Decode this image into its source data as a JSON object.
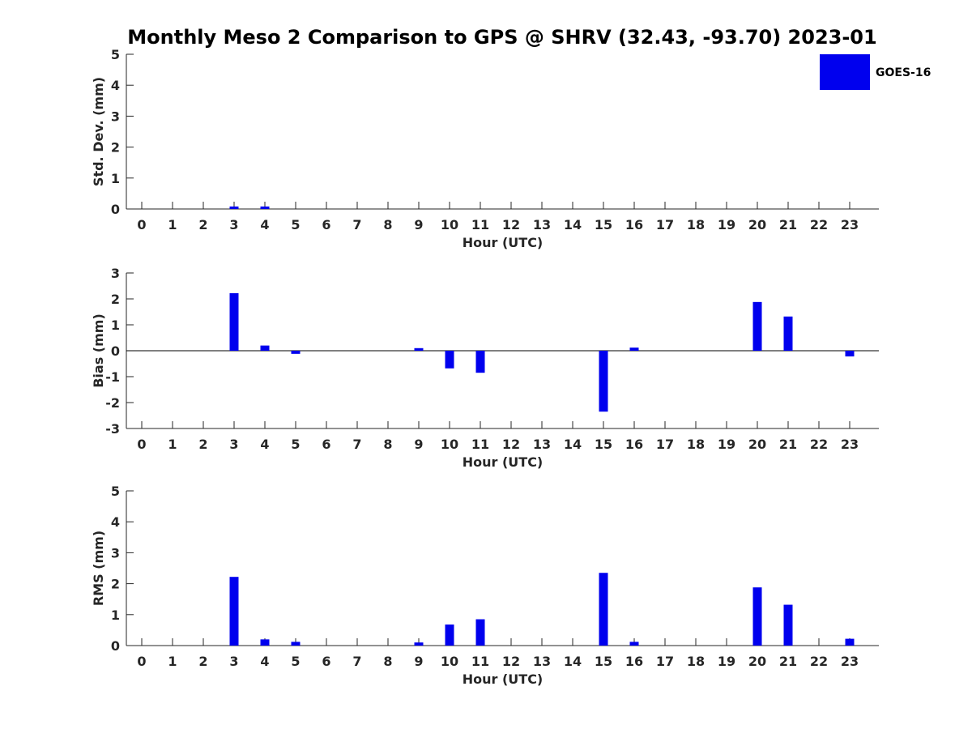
{
  "title": "Monthly Meso 2 Comparison to GPS @ SHRV (32.43, -93.70) 2023-01",
  "legend": {
    "entries": [
      "GOES-16"
    ],
    "placement": "top-right"
  },
  "colors": {
    "bar": "#0000ee",
    "axis": "#262626"
  },
  "chart_data": [
    {
      "type": "bar",
      "xlabel": "Hour (UTC)",
      "ylabel": "Std. Dev. (mm)",
      "ylim": [
        0,
        5
      ],
      "yticks": [
        0,
        1,
        2,
        3,
        4,
        5
      ],
      "categories": [
        "0",
        "1",
        "2",
        "3",
        "4",
        "5",
        "6",
        "7",
        "8",
        "9",
        "10",
        "11",
        "12",
        "13",
        "14",
        "15",
        "16",
        "17",
        "18",
        "19",
        "20",
        "21",
        "22",
        "23"
      ],
      "series": [
        {
          "name": "GOES-16",
          "values": [
            0,
            0,
            0,
            0.08,
            0.08,
            0,
            0,
            0,
            0,
            0,
            0,
            0,
            0,
            0,
            0,
            0,
            0,
            0,
            0,
            0,
            0,
            0,
            0,
            0
          ]
        }
      ],
      "grid": false
    },
    {
      "type": "bar",
      "xlabel": "Hour (UTC)",
      "ylabel": "Bias (mm)",
      "ylim": [
        -3,
        3
      ],
      "yticks": [
        -3,
        -2,
        -1,
        0,
        1,
        2,
        3
      ],
      "categories": [
        "0",
        "1",
        "2",
        "3",
        "4",
        "5",
        "6",
        "7",
        "8",
        "9",
        "10",
        "11",
        "12",
        "13",
        "14",
        "15",
        "16",
        "17",
        "18",
        "19",
        "20",
        "21",
        "22",
        "23"
      ],
      "series": [
        {
          "name": "GOES-16",
          "values": [
            0,
            0,
            0,
            2.22,
            0.2,
            -0.12,
            0,
            0,
            0,
            0.1,
            -0.68,
            -0.85,
            0,
            0,
            0,
            -2.35,
            0.12,
            0,
            0,
            0,
            1.88,
            1.32,
            0,
            -0.22
          ]
        }
      ],
      "grid": false
    },
    {
      "type": "bar",
      "xlabel": "Hour (UTC)",
      "ylabel": "RMS (mm)",
      "ylim": [
        0,
        5
      ],
      "yticks": [
        0,
        1,
        2,
        3,
        4,
        5
      ],
      "categories": [
        "0",
        "1",
        "2",
        "3",
        "4",
        "5",
        "6",
        "7",
        "8",
        "9",
        "10",
        "11",
        "12",
        "13",
        "14",
        "15",
        "16",
        "17",
        "18",
        "19",
        "20",
        "21",
        "22",
        "23"
      ],
      "series": [
        {
          "name": "GOES-16",
          "values": [
            0,
            0,
            0,
            2.22,
            0.2,
            0.12,
            0,
            0,
            0,
            0.1,
            0.68,
            0.85,
            0,
            0,
            0,
            2.35,
            0.12,
            0,
            0,
            0,
            1.88,
            1.32,
            0,
            0.22
          ]
        }
      ],
      "grid": false
    }
  ]
}
